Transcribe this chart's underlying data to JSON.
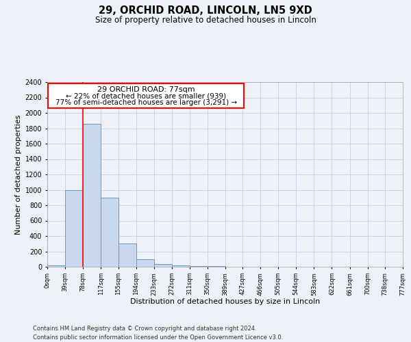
{
  "title": "29, ORCHID ROAD, LINCOLN, LN5 9XD",
  "subtitle": "Size of property relative to detached houses in Lincoln",
  "xlabel": "Distribution of detached houses by size in Lincoln",
  "ylabel": "Number of detached properties",
  "bar_left_edges": [
    0,
    39,
    78,
    117,
    155,
    194,
    233,
    272,
    311,
    350,
    389,
    427,
    466,
    505,
    544,
    583,
    622,
    661,
    700,
    738
  ],
  "bar_heights": [
    20,
    1000,
    1860,
    900,
    300,
    100,
    40,
    20,
    5,
    5,
    0,
    0,
    0,
    0,
    0,
    0,
    0,
    0,
    0,
    2
  ],
  "bin_width": 39,
  "xlim_min": 0,
  "xlim_max": 777,
  "ylim_min": 0,
  "ylim_max": 2400,
  "yticks": [
    0,
    200,
    400,
    600,
    800,
    1000,
    1200,
    1400,
    1600,
    1800,
    2000,
    2200,
    2400
  ],
  "xtick_labels": [
    "0sqm",
    "39sqm",
    "78sqm",
    "117sqm",
    "155sqm",
    "194sqm",
    "233sqm",
    "272sqm",
    "311sqm",
    "350sqm",
    "389sqm",
    "427sqm",
    "466sqm",
    "505sqm",
    "544sqm",
    "583sqm",
    "622sqm",
    "661sqm",
    "700sqm",
    "738sqm",
    "777sqm"
  ],
  "xtick_positions": [
    0,
    39,
    78,
    117,
    155,
    194,
    233,
    272,
    311,
    350,
    389,
    427,
    466,
    505,
    544,
    583,
    622,
    661,
    700,
    738,
    777
  ],
  "bar_color": "#c8d8ee",
  "bar_edge_color": "#6699cc",
  "red_line_x": 78,
  "ann_line1": "29 ORCHID ROAD: 77sqm",
  "ann_line2": "← 22% of detached houses are smaller (939)",
  "ann_line3": "77% of semi-detached houses are larger (3,291) →",
  "footer_line1": "Contains HM Land Registry data © Crown copyright and database right 2024.",
  "footer_line2": "Contains public sector information licensed under the Open Government Licence v3.0.",
  "grid_color": "#c8d4e8",
  "fig_bg_color": "#eef2f8",
  "plot_bg_color": "#eef2f8"
}
